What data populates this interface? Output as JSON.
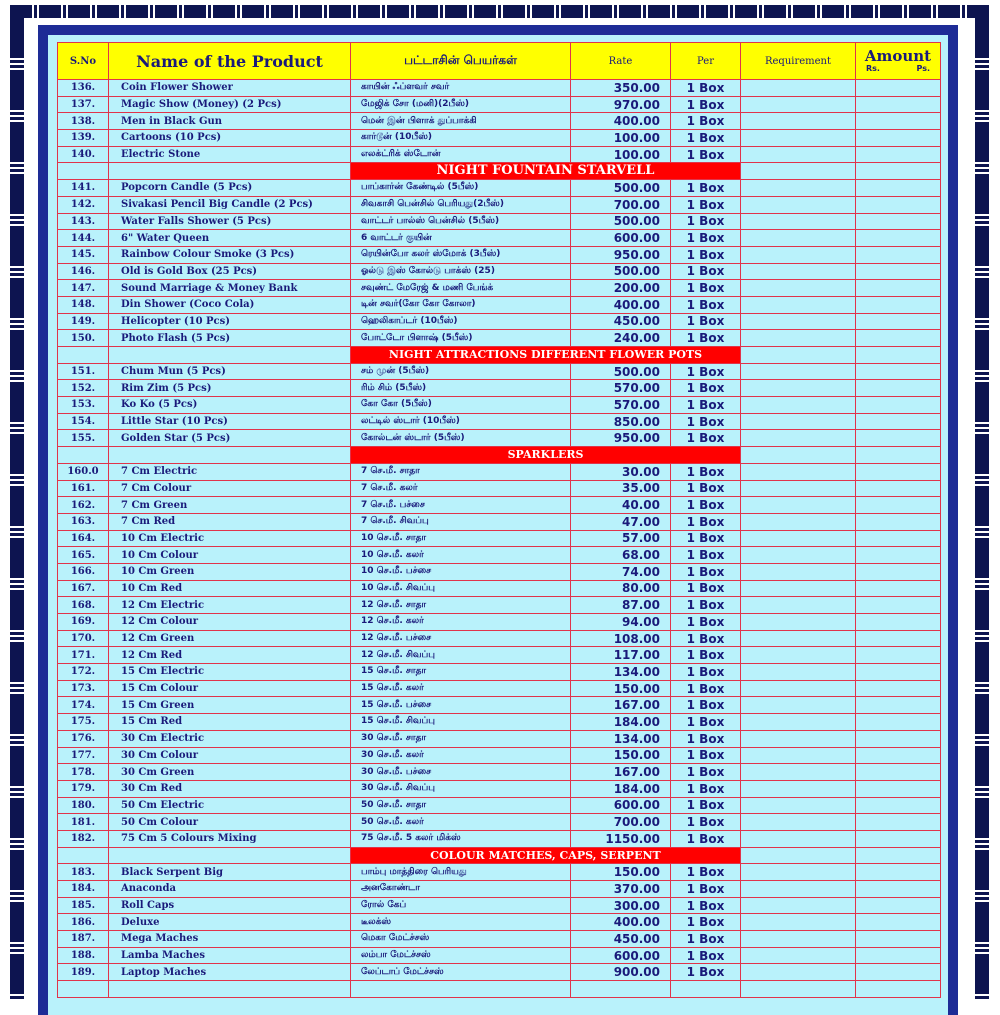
{
  "header": {
    "sno": "S.No",
    "name": "Name of the Product",
    "tamil": "பட்டாசின் பெயர்கள்",
    "rate": "Rate",
    "per": "Per",
    "requirement": "Requirement",
    "amount": "Amount",
    "rs": "Rs.",
    "ps": "Ps."
  },
  "colors": {
    "header_bg": "#ffff00",
    "row_bg": "#b9f2fb",
    "grid": "#e0344a",
    "section_bg": "#ff0000",
    "frame": "#1e2c96"
  },
  "rows": [
    {
      "sno": "136.",
      "name": "Coin Flower Shower",
      "tamil": "காயின் ஃப்ளவர் சவர்",
      "rate": "350.00",
      "per": "1 Box"
    },
    {
      "sno": "137.",
      "name": "Magic Show (Money) (2 Pcs)",
      "tamil": "மேஜிக் சோ (மனி)(2பீஸ்)",
      "rate": "970.00",
      "per": "1 Box"
    },
    {
      "sno": "138.",
      "name": "Men in Black Gun",
      "tamil": "மென் இன் பிளாக் துப்பாக்கி",
      "rate": "400.00",
      "per": "1 Box"
    },
    {
      "sno": "139.",
      "name": "Cartoons (10 Pcs)",
      "tamil": "கார்டூன் (10பீஸ்)",
      "rate": "100.00",
      "per": "1 Box"
    },
    {
      "sno": "140.",
      "name": "Electric Stone",
      "tamil": "எலக்ட்ரிக் ஸ்டோன்",
      "rate": "100.00",
      "per": "1 Box"
    },
    {
      "section": "NIGHT FOUNTAIN STARVELL",
      "big": true
    },
    {
      "sno": "141.",
      "name": "Popcorn Candle (5 Pcs)",
      "tamil": "பாப்கார்ன் கேண்டில் (5பீஸ்)",
      "rate": "500.00",
      "per": "1 Box"
    },
    {
      "sno": "142.",
      "name": "Sivakasi Pencil Big Candle (2 Pcs)",
      "tamil": "சிவகாசி பென்சில் பெரியது(2பீஸ்)",
      "rate": "700.00",
      "per": "1 Box"
    },
    {
      "sno": "143.",
      "name": "Water Falls Shower (5 Pcs)",
      "tamil": "வாட்டர் பால்ஸ் பென்சில் (5பீஸ்)",
      "rate": "500.00",
      "per": "1 Box"
    },
    {
      "sno": "144.",
      "name": "6\" Water Queen",
      "tamil": "6 வாட்டர் குயின்",
      "rate": "600.00",
      "per": "1 Box"
    },
    {
      "sno": "145.",
      "name": "Rainbow Colour Smoke (3 Pcs)",
      "tamil": "ரெயின்போ கலர் ஸ்மோக் (3பீஸ்)",
      "rate": "950.00",
      "per": "1 Box"
    },
    {
      "sno": "146.",
      "name": "Old is Gold Box (25 Pcs)",
      "tamil": "ஓல்டு இஸ் கோல்டு பாக்ஸ் (25)",
      "rate": "500.00",
      "per": "1 Box"
    },
    {
      "sno": "147.",
      "name": "Sound Marriage & Money Bank",
      "tamil": "சவுண்ட் மேரேஜ் & மணி பேங்க்",
      "rate": "200.00",
      "per": "1 Box"
    },
    {
      "sno": "148.",
      "name": "Din Shower (Coco Cola)",
      "tamil": "டின் சவர்(கோ கோ கோலா)",
      "rate": "400.00",
      "per": "1 Box"
    },
    {
      "sno": "149.",
      "name": "Helicopter (10 Pcs)",
      "tamil": "ஹெலிகாப்டர் (10பீஸ்)",
      "rate": "450.00",
      "per": "1 Box"
    },
    {
      "sno": "150.",
      "name": "Photo Flash (5 Pcs)",
      "tamil": "போட்டோ பிளாஷ் (5பீஸ்)",
      "rate": "240.00",
      "per": "1 Box"
    },
    {
      "section": "NIGHT ATTRACTIONS DIFFERENT FLOWER POTS"
    },
    {
      "sno": "151.",
      "name": "Chum Mun (5 Pcs)",
      "tamil": "சம் முன் (5பீஸ்)",
      "rate": "500.00",
      "per": "1 Box"
    },
    {
      "sno": "152.",
      "name": "Rim Zim (5 Pcs)",
      "tamil": "ரிம் சிம் (5பீஸ்)",
      "rate": "570.00",
      "per": "1 Box"
    },
    {
      "sno": "153.",
      "name": "Ko Ko (5 Pcs)",
      "tamil": "கோ கோ (5பீஸ்)",
      "rate": "570.00",
      "per": "1 Box"
    },
    {
      "sno": "154.",
      "name": "Little Star (10 Pcs)",
      "tamil": "லட்டில் ஸ்டார் (10பீஸ்)",
      "rate": "850.00",
      "per": "1 Box"
    },
    {
      "sno": "155.",
      "name": "Golden Star (5 Pcs)",
      "tamil": "கோல்டன் ஸ்டார் (5பீஸ்)",
      "rate": "950.00",
      "per": "1 Box"
    },
    {
      "section": "SPARKLERS"
    },
    {
      "sno": "160.0",
      "name": "7 Cm Electric",
      "tamil": "7 செ.மீ. சாதா",
      "rate": "30.00",
      "per": "1 Box"
    },
    {
      "sno": "161.",
      "name": "7 Cm Colour",
      "tamil": "7 செ.மீ. கலர்",
      "rate": "35.00",
      "per": "1 Box"
    },
    {
      "sno": "162.",
      "name": "7 Cm Green",
      "tamil": "7 செ.மீ. பச்சை",
      "rate": "40.00",
      "per": "1 Box"
    },
    {
      "sno": "163.",
      "name": "7 Cm Red",
      "tamil": "7 செ.மீ. சிவப்பு",
      "rate": "47.00",
      "per": "1 Box"
    },
    {
      "sno": "164.",
      "name": "10 Cm Electric",
      "tamil": "10 செ.மீ. சாதா",
      "rate": "57.00",
      "per": "1 Box"
    },
    {
      "sno": "165.",
      "name": "10 Cm Colour",
      "tamil": "10 செ.மீ. கலர்",
      "rate": "68.00",
      "per": "1 Box"
    },
    {
      "sno": "166.",
      "name": "10 Cm Green",
      "tamil": "10 செ.மீ. பச்சை",
      "rate": "74.00",
      "per": "1 Box"
    },
    {
      "sno": "167.",
      "name": "10 Cm Red",
      "tamil": "10 செ.மீ. சிவப்பு",
      "rate": "80.00",
      "per": "1 Box"
    },
    {
      "sno": "168.",
      "name": "12 Cm Electric",
      "tamil": "12 செ.மீ. சாதா",
      "rate": "87.00",
      "per": "1 Box"
    },
    {
      "sno": "169.",
      "name": "12 Cm Colour",
      "tamil": "12 செ.மீ. கலர்",
      "rate": "94.00",
      "per": "1 Box"
    },
    {
      "sno": "170.",
      "name": "12 Cm Green",
      "tamil": "12 செ.மீ. பச்சை",
      "rate": "108.00",
      "per": "1 Box"
    },
    {
      "sno": "171.",
      "name": "12 Cm Red",
      "tamil": "12 செ.மீ. சிவப்பு",
      "rate": "117.00",
      "per": "1 Box"
    },
    {
      "sno": "172.",
      "name": "15 Cm Electric",
      "tamil": "15 செ.மீ. சாதா",
      "rate": "134.00",
      "per": "1 Box"
    },
    {
      "sno": "173.",
      "name": "15 Cm Colour",
      "tamil": "15 செ.மீ. கலர்",
      "rate": "150.00",
      "per": "1 Box"
    },
    {
      "sno": "174.",
      "name": "15 Cm Green",
      "tamil": "15 செ.மீ. பச்சை",
      "rate": "167.00",
      "per": "1 Box"
    },
    {
      "sno": "175.",
      "name": "15 Cm Red",
      "tamil": "15 செ.மீ. சிவப்பு",
      "rate": "184.00",
      "per": "1 Box"
    },
    {
      "sno": "176.",
      "name": "30 Cm Electric",
      "tamil": "30 செ.மீ. சாதா",
      "rate": "134.00",
      "per": "1 Box"
    },
    {
      "sno": "177.",
      "name": "30 Cm Colour",
      "tamil": "30 செ.மீ. கலர்",
      "rate": "150.00",
      "per": "1 Box"
    },
    {
      "sno": "178.",
      "name": "30 Cm Green",
      "tamil": "30 செ.மீ. பச்சை",
      "rate": "167.00",
      "per": "1 Box"
    },
    {
      "sno": "179.",
      "name": "30 Cm Red",
      "tamil": "30 செ.மீ. சிவப்பு",
      "rate": "184.00",
      "per": "1 Box"
    },
    {
      "sno": "180.",
      "name": "50 Cm Electric",
      "tamil": "50 செ.மீ. சாதா",
      "rate": "600.00",
      "per": "1 Box"
    },
    {
      "sno": "181.",
      "name": "50 Cm Colour",
      "tamil": "50 செ.மீ. கலர்",
      "rate": "700.00",
      "per": "1 Box"
    },
    {
      "sno": "182.",
      "name": "75 Cm 5 Colours Mixing",
      "tamil": "75 செ.மீ. 5 கலர் மிக்ஸ்",
      "rate": "1150.00",
      "per": "1 Box"
    },
    {
      "section": "COLOUR MATCHES, CAPS, SERPENT"
    },
    {
      "sno": "183.",
      "name": "Black Serpent Big",
      "tamil": "பாம்பு மாத்திரை பெரியது",
      "rate": "150.00",
      "per": "1 Box"
    },
    {
      "sno": "184.",
      "name": "Anaconda",
      "tamil": "அனகோண்டா",
      "rate": "370.00",
      "per": "1 Box"
    },
    {
      "sno": "185.",
      "name": "Roll Caps",
      "tamil": "ரோல் கேப்",
      "rate": "300.00",
      "per": "1 Box"
    },
    {
      "sno": "186.",
      "name": "Deluxe",
      "tamil": "டீலக்ஸ்",
      "rate": "400.00",
      "per": "1 Box"
    },
    {
      "sno": "187.",
      "name": "Mega Maches",
      "tamil": "மெகா மேட்ச்சஸ்",
      "rate": "450.00",
      "per": "1 Box"
    },
    {
      "sno": "188.",
      "name": "Lamba Maches",
      "tamil": "லம்பா மேட்ச்சஸ்",
      "rate": "600.00",
      "per": "1 Box"
    },
    {
      "sno": "189.",
      "name": "Laptop Maches",
      "tamil": "லேப்டாப் மேட்ச்சஸ்",
      "rate": "900.00",
      "per": "1 Box"
    }
  ]
}
